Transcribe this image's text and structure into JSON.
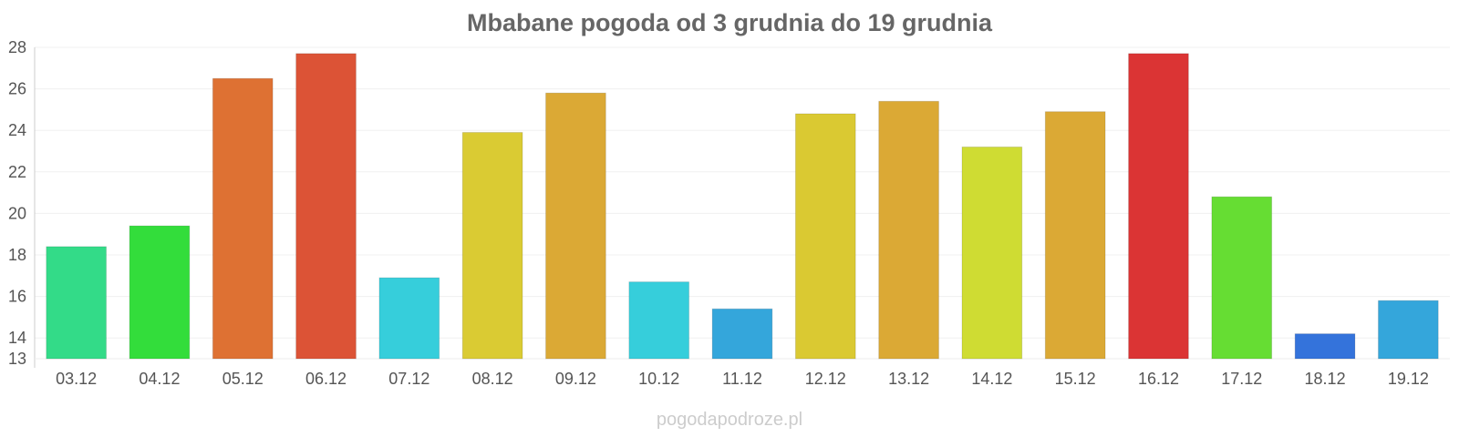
{
  "chart_data": {
    "type": "bar",
    "title": "Mbabane pogoda od 3 grudnia do 19 grudnia",
    "xlabel": "",
    "ylabel": "",
    "categories": [
      "03.12",
      "04.12",
      "05.12",
      "06.12",
      "07.12",
      "08.12",
      "09.12",
      "10.12",
      "11.12",
      "12.12",
      "13.12",
      "14.12",
      "15.12",
      "16.12",
      "17.12",
      "18.12",
      "19.12"
    ],
    "values": [
      18.4,
      19.4,
      26.5,
      27.7,
      16.9,
      23.9,
      25.8,
      16.7,
      15.4,
      24.8,
      25.4,
      23.2,
      24.9,
      27.7,
      20.8,
      14.2,
      15.8
    ],
    "colors": [
      "#33db88",
      "#33dd3b",
      "#de7133",
      "#dc5336",
      "#36cedb",
      "#dacb33",
      "#dba935",
      "#36cedb",
      "#34a6db",
      "#dac932",
      "#dba935",
      "#cfdc33",
      "#dba935",
      "#db3434",
      "#66dd33",
      "#3473db",
      "#34a6db"
    ],
    "ylim": [
      13,
      28
    ],
    "yticks": [
      13,
      14,
      16,
      18,
      20,
      22,
      24,
      26,
      28
    ],
    "grid": true,
    "legend": "none"
  },
  "watermark": "pogodapodroze.pl"
}
